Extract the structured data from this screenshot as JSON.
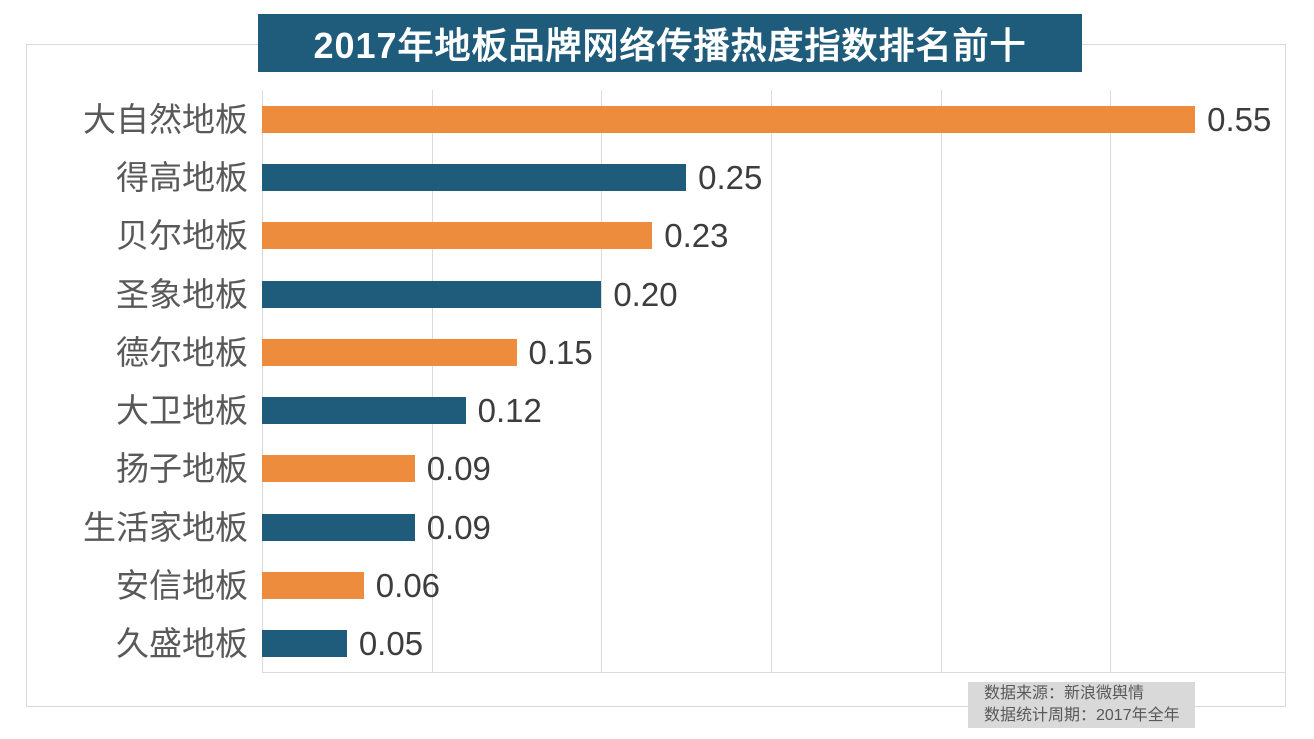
{
  "title": "2017年地板品牌网络传播热度指数排名前十",
  "source_box": {
    "line1": "数据来源：新浪微舆情",
    "line2": "数据统计周期：2017年全年"
  },
  "colors": {
    "title_bg": "#1f5c7c",
    "title_text": "#ffffff",
    "bar_orange": "#ed8c3d",
    "bar_teal": "#1f5c7c",
    "grid": "#dbdbdb",
    "frame_border": "#d9d9d9",
    "category_text": "#595959",
    "value_text": "#3d3d3d",
    "source_bg": "#d9d9d9",
    "source_text": "#595959",
    "background": "#ffffff"
  },
  "chart_data": {
    "type": "bar",
    "orientation": "horizontal",
    "title": "2017年地板品牌网络传播热度指数排名前十",
    "categories": [
      "大自然地板",
      "得高地板",
      "贝尔地板",
      "圣象地板",
      "德尔地板",
      "大卫地板",
      "扬子地板",
      "生活家地板",
      "安信地板",
      "久盛地板"
    ],
    "values": [
      0.55,
      0.25,
      0.23,
      0.2,
      0.15,
      0.12,
      0.09,
      0.09,
      0.06,
      0.05
    ],
    "value_labels": [
      "0.55",
      "0.25",
      "0.23",
      "0.20",
      "0.15",
      "0.12",
      "0.09",
      "0.09",
      "0.06",
      "0.05"
    ],
    "bar_color_alternation": [
      "#ed8c3d",
      "#1f5c7c"
    ],
    "xlabel": "",
    "ylabel": "",
    "xlim": [
      0,
      0.6
    ],
    "gridline_ticks": [
      0,
      0.1,
      0.2,
      0.3,
      0.4,
      0.5
    ],
    "grid": true,
    "legend": false,
    "value_labels_position": "end-of-bar"
  }
}
